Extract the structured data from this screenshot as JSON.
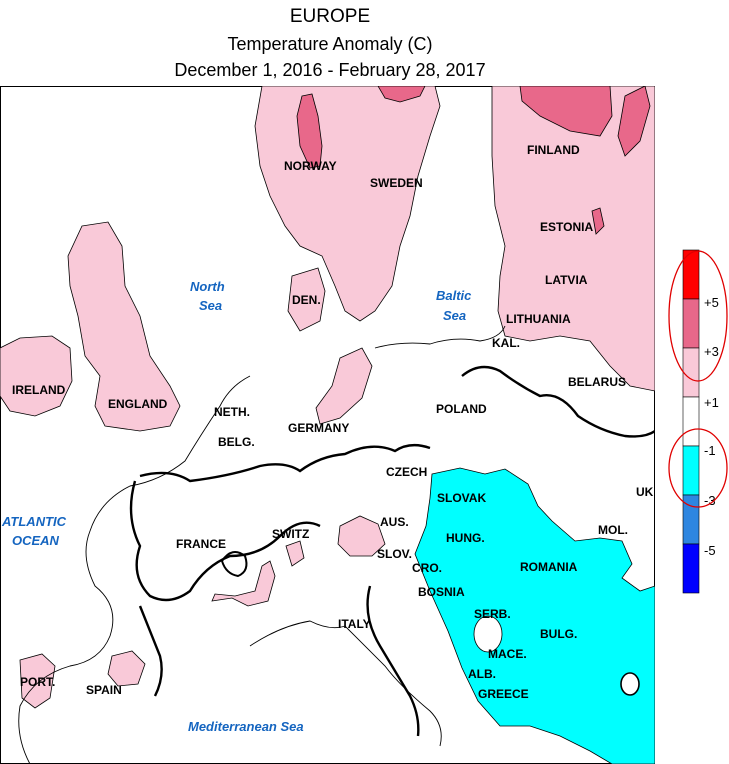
{
  "title": {
    "line1": "EUROPE",
    "line2": "Temperature Anomaly (C)",
    "line3": "December 1, 2016 - February 28, 2017"
  },
  "colors": {
    "light_pink": "#f9c9d8",
    "medium_pink": "#e8688a",
    "red": "#ff0000",
    "cyan": "#00ffff",
    "mid_blue": "#2e86e0",
    "dark_blue": "#0000ff",
    "annotation": "#e00000"
  },
  "countries": {
    "norway": "NORWAY",
    "sweden": "SWEDEN",
    "finland": "FINLAND",
    "estonia": "ESTONIA",
    "latvia": "LATVIA",
    "lithuania": "LITHUANIA",
    "kal": "KAL.",
    "belarus": "BELARUS",
    "den": "DEN.",
    "ireland": "IRELAND",
    "england": "ENGLAND",
    "neth": "NETH.",
    "belg": "BELG.",
    "germany": "GERMANY",
    "poland": "POLAND",
    "czech": "CZECH",
    "slovak": "SLOVAK",
    "uk_partial": "UK",
    "france": "FRANCE",
    "switz": "SWITZ",
    "aus": "AUS.",
    "hung": "HUNG.",
    "mol": "MOL.",
    "slov": "SLOV.",
    "cro": "CRO.",
    "romania": "ROMANIA",
    "bosnia": "BOSNIA",
    "serb": "SERB.",
    "italy": "ITALY",
    "bulg": "BULG.",
    "mace": "MACE.",
    "alb": "ALB.",
    "greece": "GREECE",
    "port": "PORT.",
    "spain": "SPAIN"
  },
  "seas": {
    "north_line1": "North",
    "north_line2": "Sea",
    "baltic_line1": "Baltic",
    "baltic_line2": "Sea",
    "atlantic_line1": "ATLANTIC",
    "atlantic_line2": "OCEAN",
    "mediterranean": "Mediterranean Sea"
  },
  "legend": {
    "labels": [
      "+5",
      "+3",
      "+1",
      "-1",
      "-3",
      "-5"
    ],
    "bins": [
      {
        "color": "#ff0000",
        "meaning": "> +5"
      },
      {
        "color": "#e8688a",
        "meaning": "+3 to +5"
      },
      {
        "color": "#f9c9d8",
        "meaning": "+1 to +3"
      },
      {
        "color": "#ffffff",
        "meaning": "-1 to +1"
      },
      {
        "color": "#00ffff",
        "meaning": "-3 to -1"
      },
      {
        "color": "#2e86e0",
        "meaning": "-5 to -3"
      },
      {
        "color": "#0000ff",
        "meaning": "< -5"
      }
    ]
  }
}
